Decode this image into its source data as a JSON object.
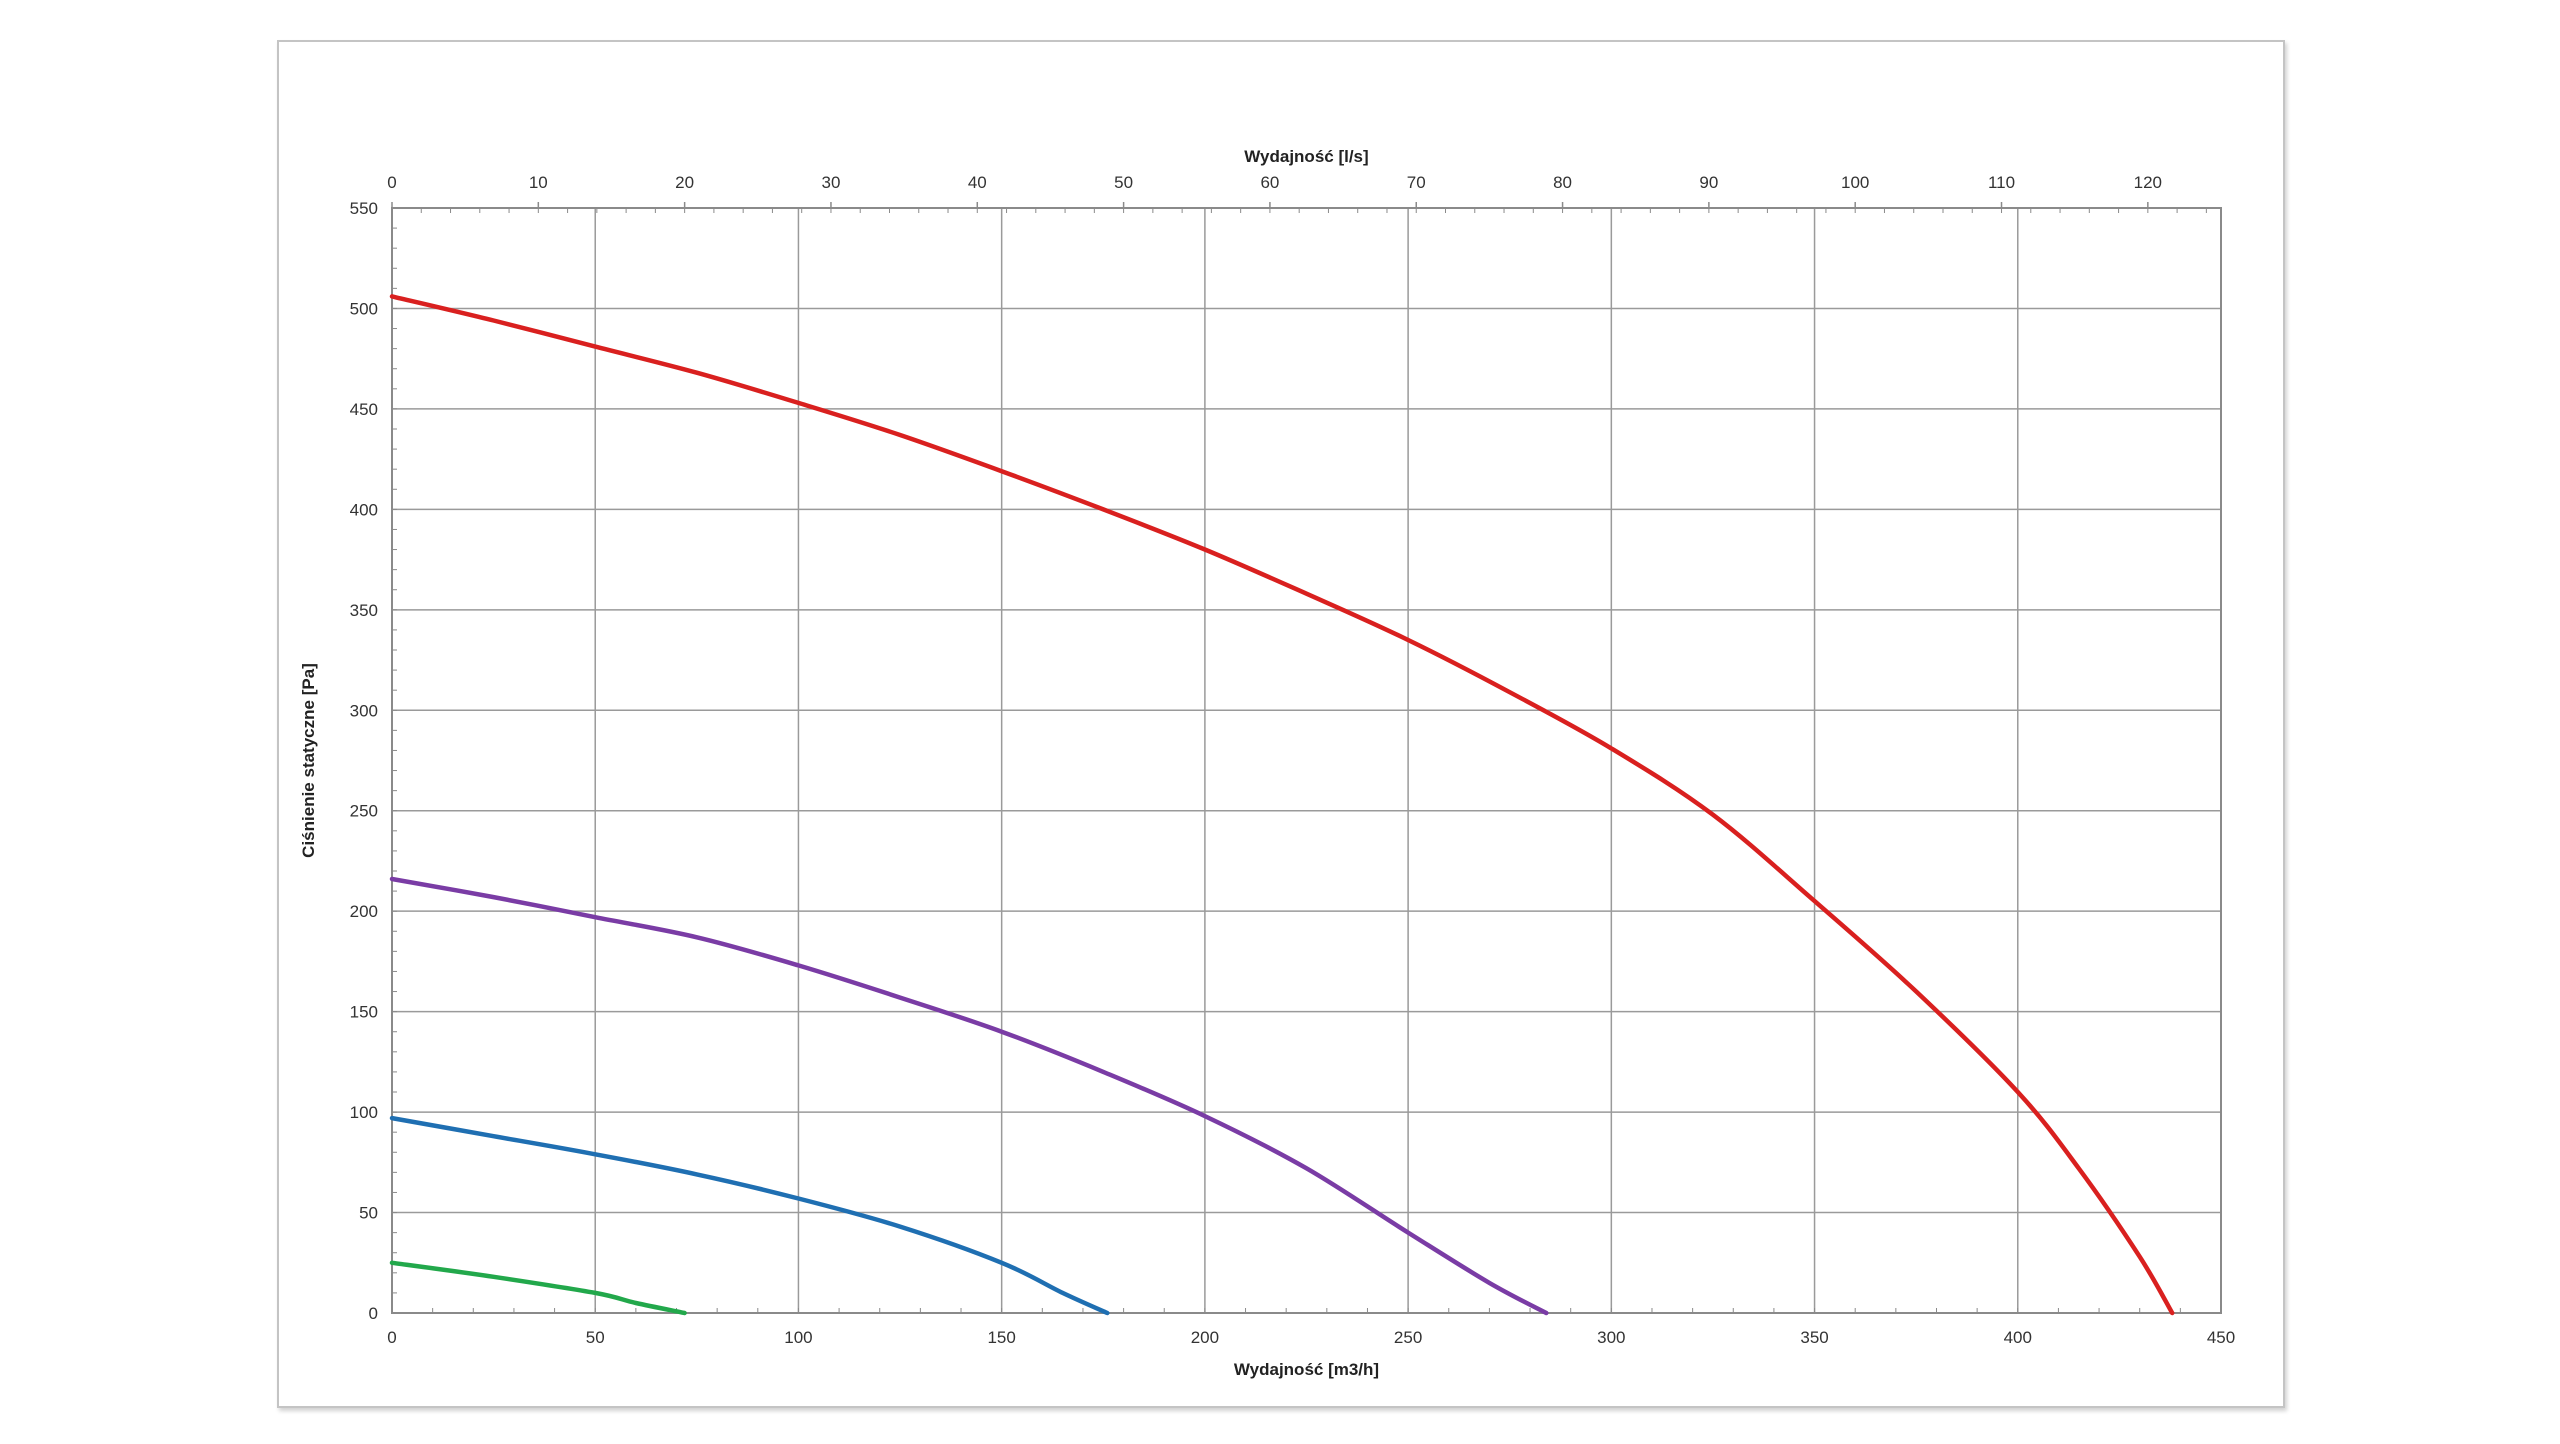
{
  "chart_data": {
    "type": "line",
    "title": "",
    "xlabel": "Wydajność [m3/h]",
    "x2label": "Wydajność [l/s]",
    "ylabel": "Ciśnienie statyczne [Pa]",
    "xlim": [
      0,
      450
    ],
    "ylim": [
      0,
      550
    ],
    "x2lim": [
      0,
      125
    ],
    "x_ticks": [
      "0",
      "50",
      "100",
      "150",
      "200",
      "250",
      "300",
      "350",
      "400",
      "450"
    ],
    "y_ticks": [
      "0",
      "50",
      "100",
      "150",
      "200",
      "250",
      "300",
      "350",
      "400",
      "450",
      "500",
      "550"
    ],
    "x2_ticks": [
      "0",
      "10",
      "20",
      "30",
      "40",
      "50",
      "60",
      "70",
      "80",
      "90",
      "100",
      "110",
      "120"
    ],
    "grid": true,
    "legend": "none",
    "series": [
      {
        "color": "#d9201f",
        "points": [
          [
            0,
            506
          ],
          [
            25,
            494
          ],
          [
            50,
            481
          ],
          [
            75,
            468
          ],
          [
            100,
            453
          ],
          [
            125,
            437
          ],
          [
            150,
            419
          ],
          [
            175,
            400
          ],
          [
            200,
            380
          ],
          [
            225,
            358
          ],
          [
            250,
            335
          ],
          [
            275,
            309
          ],
          [
            300,
            281
          ],
          [
            325,
            248
          ],
          [
            350,
            205
          ],
          [
            375,
            160
          ],
          [
            400,
            110
          ],
          [
            415,
            72
          ],
          [
            430,
            28
          ],
          [
            438,
            0
          ]
        ]
      },
      {
        "color": "#7a3ca5",
        "points": [
          [
            0,
            216
          ],
          [
            25,
            207
          ],
          [
            50,
            197
          ],
          [
            75,
            187
          ],
          [
            100,
            173
          ],
          [
            125,
            157
          ],
          [
            150,
            140
          ],
          [
            175,
            120
          ],
          [
            200,
            98
          ],
          [
            225,
            72
          ],
          [
            250,
            40
          ],
          [
            270,
            15
          ],
          [
            284,
            0
          ]
        ]
      },
      {
        "color": "#1f6fb2",
        "points": [
          [
            0,
            97
          ],
          [
            25,
            88
          ],
          [
            50,
            79
          ],
          [
            75,
            69
          ],
          [
            100,
            57
          ],
          [
            125,
            43
          ],
          [
            150,
            25
          ],
          [
            165,
            10
          ],
          [
            176,
            0
          ]
        ]
      },
      {
        "color": "#22a84b",
        "points": [
          [
            0,
            25
          ],
          [
            25,
            18
          ],
          [
            50,
            10
          ],
          [
            60,
            5
          ],
          [
            72,
            0
          ]
        ]
      }
    ]
  }
}
